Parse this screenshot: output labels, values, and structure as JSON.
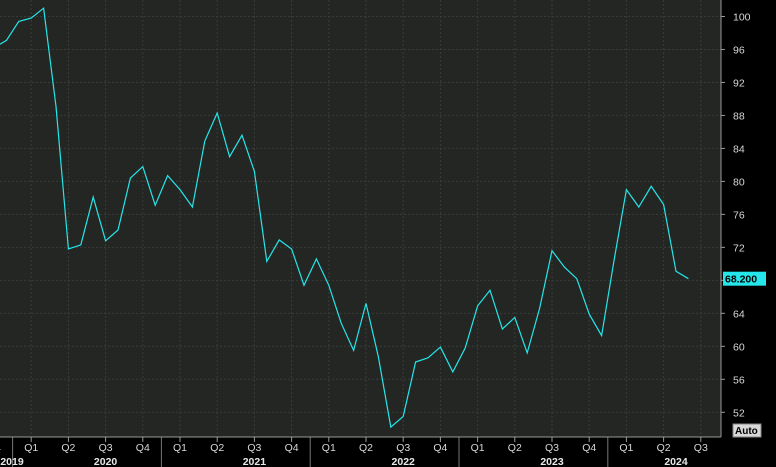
{
  "chart_data": {
    "type": "line",
    "y_ticks": [
      52,
      56,
      60,
      64,
      68,
      72,
      76,
      80,
      84,
      88,
      92,
      96,
      100
    ],
    "ylim": [
      49,
      102
    ],
    "grid": true,
    "colors": {
      "line": "#25e6ea",
      "background": "#232623",
      "last_value_bg": "#25e6ea"
    },
    "last_value_label": "68.200",
    "auto_label": "Auto",
    "quarter_ticks": [
      {
        "label": "Q4",
        "i": 0
      },
      {
        "label": "Q1",
        "i": 3
      },
      {
        "label": "Q2",
        "i": 6
      },
      {
        "label": "Q3",
        "i": 9
      },
      {
        "label": "Q4",
        "i": 12
      },
      {
        "label": "Q1",
        "i": 15
      },
      {
        "label": "Q2",
        "i": 18
      },
      {
        "label": "Q3",
        "i": 21
      },
      {
        "label": "Q4",
        "i": 24
      },
      {
        "label": "Q1",
        "i": 27
      },
      {
        "label": "Q2",
        "i": 30
      },
      {
        "label": "Q3",
        "i": 33
      },
      {
        "label": "Q4",
        "i": 36
      },
      {
        "label": "Q1",
        "i": 39
      },
      {
        "label": "Q2",
        "i": 42
      },
      {
        "label": "Q3",
        "i": 45
      },
      {
        "label": "Q4",
        "i": 48
      },
      {
        "label": "Q1",
        "i": 51
      },
      {
        "label": "Q2",
        "i": 54
      },
      {
        "label": "Q3",
        "i": 57
      }
    ],
    "year_labels": [
      {
        "label": "2019",
        "i": 0
      },
      {
        "label": "2020",
        "i": 9
      },
      {
        "label": "2021",
        "i": 21
      },
      {
        "label": "2022",
        "i": 33
      },
      {
        "label": "2023",
        "i": 45
      },
      {
        "label": "2024",
        "i": 55
      }
    ],
    "year_dividers": [
      1.5,
      13.5,
      25.5,
      37.5,
      49.5
    ],
    "values": [
      96.2,
      97.1,
      99.4,
      99.8,
      101.0,
      89.1,
      71.8,
      72.3,
      78.1,
      72.8,
      74.1,
      80.4,
      81.8,
      77.1,
      80.7,
      79.0,
      76.9,
      84.9,
      88.3,
      83.0,
      85.6,
      81.2,
      70.3,
      72.9,
      71.8,
      67.4,
      70.6,
      67.4,
      62.8,
      59.5,
      65.2,
      58.7,
      50.2,
      51.5,
      58.1,
      58.6,
      59.9,
      56.9,
      59.8,
      64.9,
      66.8,
      62.1,
      63.5,
      59.2,
      64.6,
      71.6,
      69.6,
      68.2,
      63.9,
      61.3,
      70.4,
      79.0,
      76.9,
      79.4,
      77.2,
      69.1,
      68.2
    ]
  }
}
